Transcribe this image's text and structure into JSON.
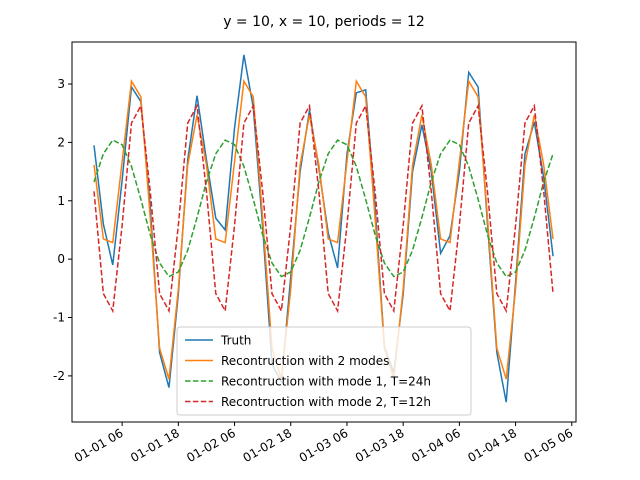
{
  "chart_data": {
    "type": "line",
    "title": "y = 10, x = 10, periods = 12",
    "x": [
      0,
      2,
      4,
      6,
      8,
      10,
      12,
      14,
      16,
      18,
      20,
      22,
      24,
      26,
      28,
      30,
      32,
      34,
      36,
      38,
      40,
      42,
      44,
      46,
      48,
      50,
      52,
      54,
      56,
      58,
      60,
      62,
      64,
      66,
      68,
      70,
      72,
      74,
      76,
      78,
      80,
      82,
      84,
      86,
      88,
      90,
      92,
      94,
      96,
      98
    ],
    "series": [
      {
        "name": "Truth",
        "color": "#1f77b4",
        "dash": false,
        "values": [
          1.95,
          0.6,
          -0.1,
          1.35,
          2.95,
          2.7,
          0.9,
          -1.6,
          -2.2,
          -0.6,
          1.7,
          2.8,
          1.7,
          0.7,
          0.5,
          2.25,
          3.5,
          2.6,
          0.55,
          -1.8,
          -2.1,
          -0.3,
          1.5,
          2.55,
          1.55,
          0.45,
          -0.15,
          1.8,
          2.85,
          2.9,
          0.9,
          -1.5,
          -1.95,
          -0.6,
          1.5,
          2.3,
          1.5,
          0.1,
          0.4,
          1.5,
          3.2,
          2.95,
          0.6,
          -1.6,
          -2.45,
          -0.4,
          1.8,
          2.35,
          1.4,
          0.05
        ]
      },
      {
        "name": "Recontruction with 2 modes",
        "color": "#ff7f0e",
        "dash": false,
        "values": [
          1.615,
          0.345,
          0.283,
          1.667,
          3.05,
          2.781,
          0.711,
          -1.527,
          -2.055,
          -0.513,
          1.612,
          2.471,
          1.615,
          0.345,
          0.283,
          1.667,
          3.05,
          2.781,
          0.711,
          -1.527,
          -2.055,
          -0.513,
          1.612,
          2.471,
          1.615,
          0.345,
          0.283,
          1.667,
          3.05,
          2.781,
          0.711,
          -1.527,
          -2.055,
          -0.513,
          1.612,
          2.471,
          1.615,
          0.345,
          0.283,
          1.667,
          3.05,
          2.781,
          0.711,
          -1.527,
          -2.055,
          -0.513,
          1.612,
          2.471,
          1.615,
          0.345
        ]
      },
      {
        "name": "Recontruction with mode 1, T=24h",
        "color": "#2ca02c",
        "dash": true,
        "values": [
          1.322,
          1.806,
          2.039,
          1.96,
          1.589,
          1.025,
          0.418,
          -0.066,
          -0.299,
          -0.22,
          0.151,
          0.715,
          1.322,
          1.806,
          2.039,
          1.96,
          1.589,
          1.025,
          0.418,
          -0.066,
          -0.299,
          -0.22,
          0.151,
          0.715,
          1.322,
          1.806,
          2.039,
          1.96,
          1.589,
          1.025,
          0.418,
          -0.066,
          -0.299,
          -0.22,
          0.151,
          0.715,
          1.322,
          1.806,
          2.039,
          1.96,
          1.589,
          1.025,
          0.418,
          -0.066,
          -0.299,
          -0.22,
          0.151,
          0.715,
          1.322,
          1.806
        ]
      },
      {
        "name": "Recontruction with mode 2, T=12h",
        "color": "#d62728",
        "dash": true,
        "values": [
          1.163,
          -0.591,
          -0.886,
          0.577,
          2.331,
          2.626,
          1.163,
          -0.591,
          -0.886,
          0.577,
          2.331,
          2.626,
          1.163,
          -0.591,
          -0.886,
          0.577,
          2.331,
          2.626,
          1.163,
          -0.591,
          -0.886,
          0.577,
          2.331,
          2.626,
          1.163,
          -0.591,
          -0.886,
          0.577,
          2.331,
          2.626,
          1.163,
          -0.591,
          -0.886,
          0.577,
          2.331,
          2.626,
          1.163,
          -0.591,
          -0.886,
          0.577,
          2.331,
          2.626,
          1.163,
          -0.591,
          -0.886,
          0.577,
          2.331,
          2.626,
          1.163,
          -0.591
        ]
      }
    ],
    "xlim": [
      -4.7,
      102.9
    ],
    "xticks": [
      {
        "value": 6,
        "label": "01-01 06"
      },
      {
        "value": 18,
        "label": "01-01 18"
      },
      {
        "value": 30,
        "label": "01-02 06"
      },
      {
        "value": 42,
        "label": "01-02 18"
      },
      {
        "value": 54,
        "label": "01-03 06"
      },
      {
        "value": 66,
        "label": "01-03 18"
      },
      {
        "value": 78,
        "label": "01-04 06"
      },
      {
        "value": 90,
        "label": "01-04 18"
      },
      {
        "value": 102,
        "label": "01-05 06"
      }
    ],
    "ylim": [
      -2.79,
      3.72
    ],
    "yticks": [
      -2,
      -1,
      0,
      1,
      2,
      3
    ],
    "grid": false,
    "legend": "lower center"
  }
}
